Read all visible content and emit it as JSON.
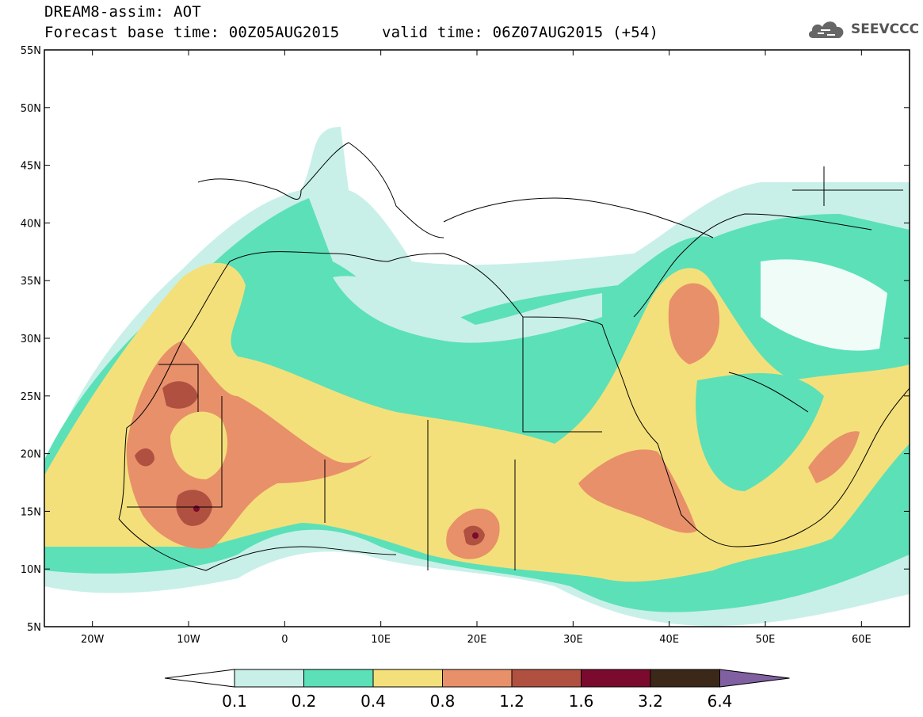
{
  "header": {
    "title": "DREAM8-assim: AOT",
    "base_time": "Forecast base time: 00Z05AUG2015",
    "valid_time": "valid time: 06Z07AUG2015 (+54)"
  },
  "logo": {
    "text": "SEEVCCC",
    "icon": "cloud-icon"
  },
  "map": {
    "lat_labels": [
      "55N",
      "50N",
      "45N",
      "40N",
      "35N",
      "30N",
      "25N",
      "20N",
      "15N",
      "10N",
      "5N"
    ],
    "lon_labels": [
      "20W",
      "10W",
      "0",
      "10E",
      "20E",
      "30E",
      "40E",
      "50E",
      "60E"
    ],
    "lat_range": [
      5,
      55
    ],
    "lon_range": [
      -25,
      65
    ]
  },
  "colorbar": {
    "labels": [
      "0.1",
      "0.2",
      "0.4",
      "0.8",
      "1.2",
      "1.6",
      "3.2",
      "6.4"
    ],
    "colors": [
      "#ffffff",
      "#c8f0e8",
      "#5ce0b8",
      "#f4e07a",
      "#e8906a",
      "#b05040",
      "#7a0a2e",
      "#3c2818",
      "#8060a0"
    ]
  }
}
